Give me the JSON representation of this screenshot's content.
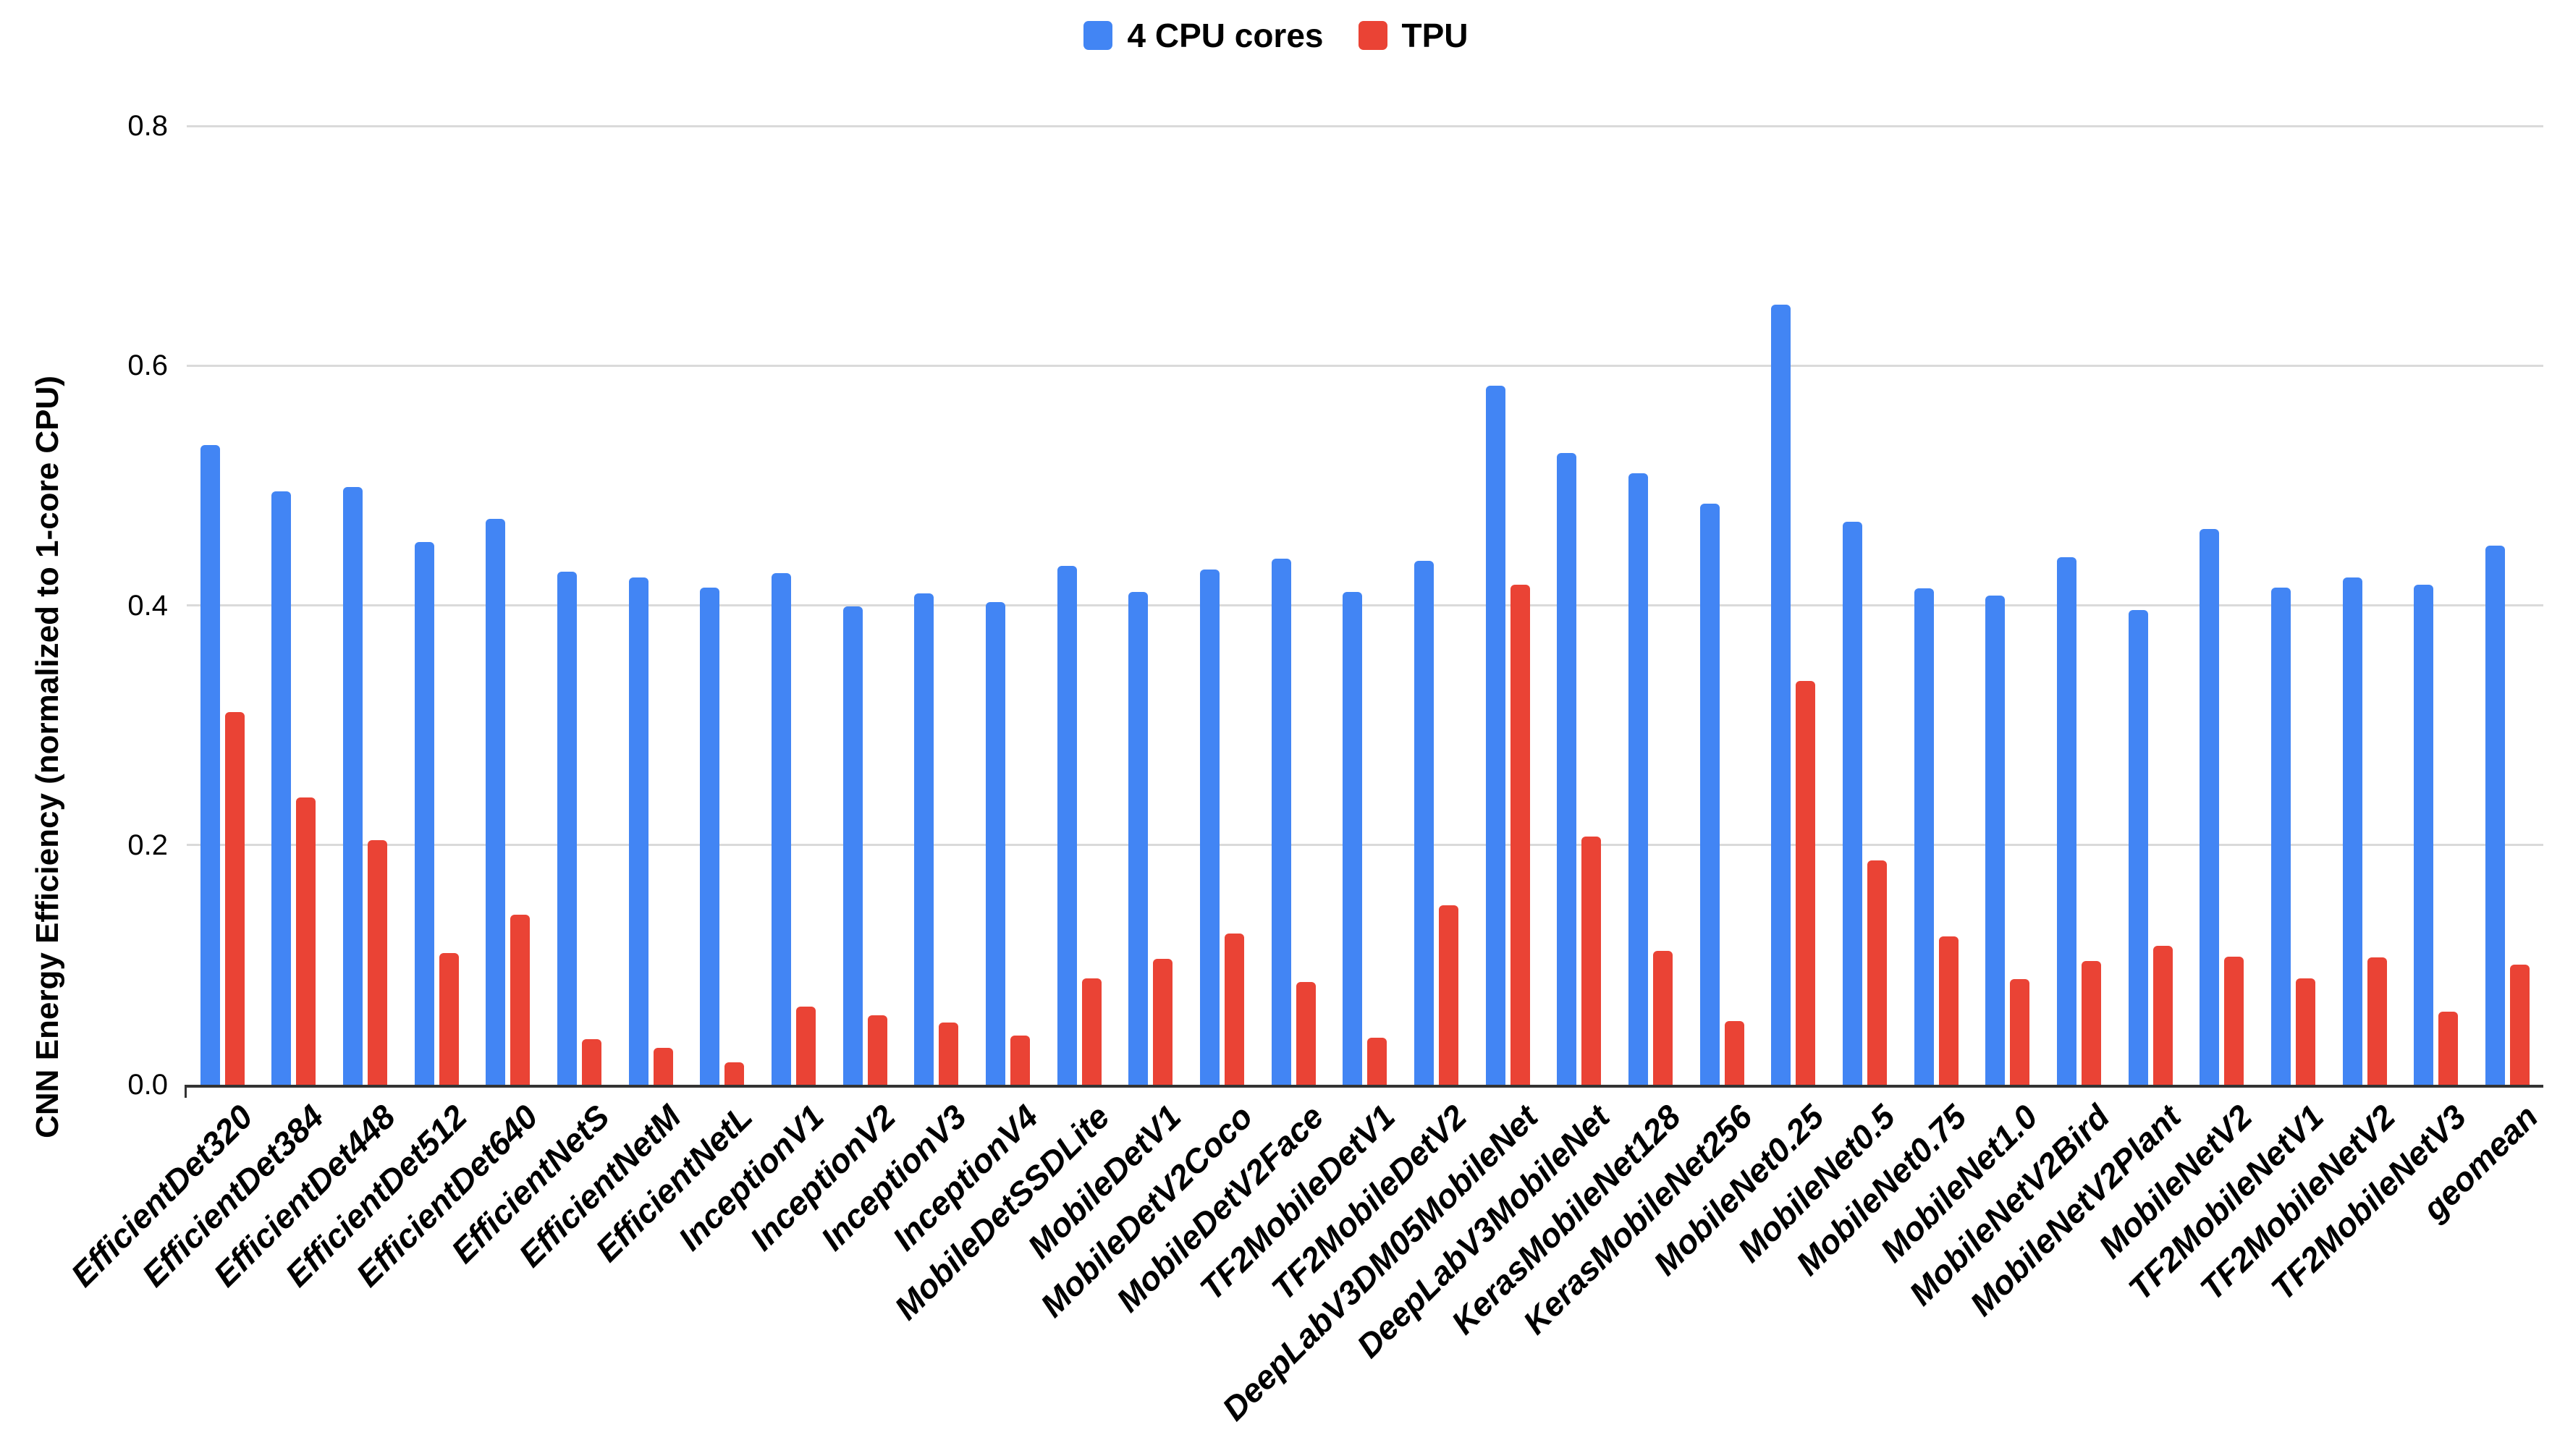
{
  "legend": [
    {
      "label": "4 CPU cores",
      "color": "#4285F4"
    },
    {
      "label": "TPU",
      "color": "#EA4335"
    }
  ],
  "y_axis": {
    "title": "CNN Energy Efficiency (normalized to 1-core CPU)",
    "ticks": [
      {
        "label": "0.0",
        "value": 0.0
      },
      {
        "label": "0.2",
        "value": 0.2
      },
      {
        "label": "0.4",
        "value": 0.4
      },
      {
        "label": "0.6",
        "value": 0.6
      },
      {
        "label": "0.8",
        "value": 0.8
      }
    ]
  },
  "chart_data": {
    "type": "bar",
    "title": "",
    "xlabel": "",
    "ylabel": "CNN Energy Efficiency (normalized to 1-core CPU)",
    "ylim": [
      0,
      0.8
    ],
    "grid": true,
    "legend_position": "top",
    "categories": [
      "EfficientDet320",
      "EfficientDet384",
      "EfficientDet448",
      "EfficientDet512",
      "EfficientDet640",
      "EfficientNetS",
      "EfficientNetM",
      "EfficientNetL",
      "InceptionV1",
      "InceptionV2",
      "InceptionV3",
      "InceptionV4",
      "MobileDetSSDLite",
      "MobileDetV1",
      "MobileDetV2Coco",
      "MobileDetV2Face",
      "TF2MobileDetV1",
      "TF2MobileDetV2",
      "DeepLabV3DM05MobileNet",
      "DeepLabV3MobileNet",
      "KerasMobileNet128",
      "KerasMobileNet256",
      "MobileNet0.25",
      "MobileNet0.5",
      "MobileNet0.75",
      "MobileNet1.0",
      "MobileNetV2Bird",
      "MobileNetV2Plant",
      "MobileNetV2",
      "TF2MobileNetV1",
      "TF2MobileNetV2",
      "TF2MobileNetV3",
      "geomean"
    ],
    "series": [
      {
        "name": "4 CPU cores",
        "color": "#4285F4",
        "values": [
          0.534,
          0.495,
          0.499,
          0.453,
          0.472,
          0.428,
          0.423,
          0.415,
          0.427,
          0.399,
          0.41,
          0.403,
          0.433,
          0.411,
          0.43,
          0.439,
          0.411,
          0.437,
          0.583,
          0.527,
          0.51,
          0.485,
          0.651,
          0.47,
          0.414,
          0.408,
          0.44,
          0.396,
          0.464,
          0.415,
          0.423,
          0.417,
          0.45
        ]
      },
      {
        "name": "TPU",
        "color": "#EA4335",
        "values": [
          0.311,
          0.24,
          0.204,
          0.11,
          0.142,
          0.038,
          0.031,
          0.019,
          0.065,
          0.058,
          0.052,
          0.041,
          0.089,
          0.105,
          0.126,
          0.086,
          0.039,
          0.15,
          0.417,
          0.207,
          0.112,
          0.053,
          0.337,
          0.187,
          0.124,
          0.088,
          0.103,
          0.116,
          0.107,
          0.089,
          0.106,
          0.061,
          0.1
        ]
      }
    ]
  }
}
